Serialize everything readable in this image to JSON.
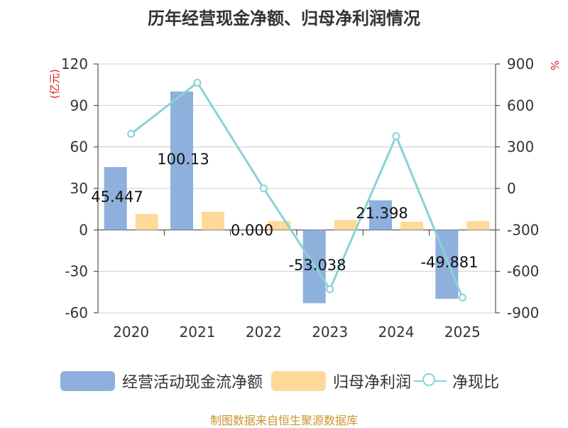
{
  "title": "历年经营现金净额、归母净利润情况",
  "chart_data": {
    "type": "bar",
    "categories": [
      "2020",
      "2021",
      "2022",
      "2023",
      "2024",
      "2025"
    ],
    "series": [
      {
        "name": "经营活动现金流净额",
        "type": "bar",
        "axis": "left",
        "color": "#8eb0dc",
        "values": [
          45.447,
          100.13,
          0.0,
          -53.038,
          21.398,
          -49.881
        ],
        "labels": [
          "45.447",
          "100.13",
          "0.000",
          "-53.038",
          "21.398",
          "-49.881"
        ]
      },
      {
        "name": "归母净利润",
        "type": "bar",
        "axis": "left",
        "color": "#ffd99a",
        "values": [
          11.5,
          13.1,
          6.4,
          7.2,
          5.9,
          6.3
        ]
      },
      {
        "name": "净现比",
        "type": "line",
        "axis": "right",
        "color": "#88d3d6",
        "values": [
          395,
          765,
          0,
          -730,
          378,
          -790
        ]
      }
    ],
    "left_axis": {
      "unit": "(亿元)",
      "ylim": [
        -60,
        120
      ],
      "ticks": [
        120,
        90,
        60,
        30,
        0,
        -30,
        -60
      ]
    },
    "right_axis": {
      "unit": "%",
      "ylim": [
        -900,
        900
      ],
      "ticks": [
        900,
        600,
        300,
        0,
        -300,
        -600,
        -900
      ]
    }
  },
  "legend": {
    "bar1": "经营活动现金流净额",
    "bar2": "归母净利润",
    "line": "净现比"
  },
  "source": "制图数据来自恒生聚源数据库"
}
